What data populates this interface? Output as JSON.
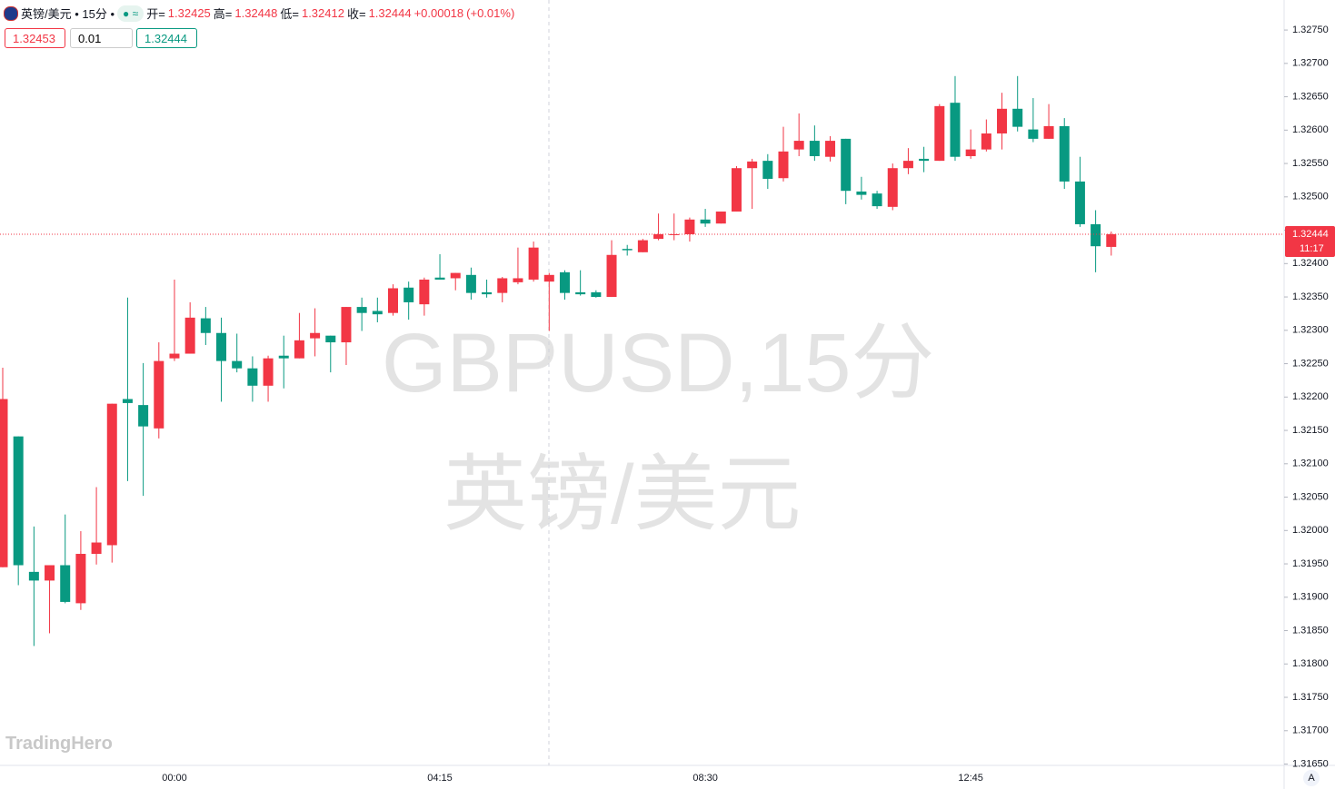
{
  "header": {
    "symbol": "英镑/美元 • 15分 •",
    "open_label": "开=",
    "high_label": "高=",
    "low_label": "低=",
    "close_label": "收=",
    "change": "+0.00018",
    "change_pct": "(+0.01%)"
  },
  "order": {
    "sell": "1.32453",
    "qty": "0.01",
    "buy": "1.32444"
  },
  "watermark": [
    "GBPUSD,15分",
    "英镑/美元"
  ],
  "logo": "TradingHero",
  "axis_mode": "A",
  "countdown": "11:17",
  "chart_data": {
    "type": "candlestick",
    "x": [
      null,
      null,
      null,
      null,
      null,
      null,
      null,
      null,
      null,
      null,
      null,
      "00:00",
      null,
      null,
      null,
      null,
      null,
      null,
      null,
      null,
      null,
      null,
      null,
      null,
      null,
      null,
      null,
      null,
      "04:15",
      null,
      null,
      null,
      null,
      null,
      null,
      null,
      null,
      null,
      null,
      null,
      null,
      null,
      null,
      null,
      null,
      "08:30",
      null,
      null,
      null,
      null,
      null,
      null,
      null,
      null,
      null,
      null,
      null,
      null,
      null,
      null,
      null,
      null,
      "12:45",
      null,
      null,
      null,
      null,
      null,
      null,
      null,
      null,
      null
    ],
    "open": [
      1.31945,
      1.32141,
      1.31938,
      1.31925,
      1.31948,
      1.31891,
      1.31965,
      1.31978,
      1.32197,
      1.32188,
      1.32153,
      1.32258,
      1.32265,
      1.32318,
      1.32296,
      1.32254,
      1.32243,
      1.32217,
      1.32262,
      1.32258,
      1.32288,
      1.32292,
      1.32282,
      1.32335,
      1.32329,
      1.32326,
      1.32364,
      1.32339,
      1.32379,
      1.32378,
      1.32383,
      1.32357,
      1.32356,
      1.32372,
      1.32376,
      1.32373,
      1.32387,
      1.32357,
      1.32357,
      1.3235,
      1.32422,
      1.32417,
      1.32437,
      1.32443,
      1.32444,
      1.32466,
      1.3246,
      1.32478,
      1.32543,
      1.32554,
      1.32528,
      1.32571,
      1.32584,
      1.3256,
      1.32587,
      1.32508,
      1.32505,
      1.32485,
      1.32543,
      1.32557,
      1.32554,
      1.32641,
      1.32561,
      1.32571,
      1.32595,
      1.32632,
      1.32601,
      1.32587,
      1.32606,
      1.32523,
      1.32459,
      1.32425
    ],
    "high": [
      1.32244,
      1.32141,
      1.32006,
      1.31948,
      1.32024,
      1.31999,
      1.32065,
      1.3219,
      1.32349,
      1.32251,
      1.32282,
      1.32376,
      1.32342,
      1.32335,
      1.32319,
      1.32295,
      1.32261,
      1.32262,
      1.32292,
      1.32326,
      1.32333,
      1.32292,
      1.32335,
      1.32349,
      1.32349,
      1.32369,
      1.32373,
      1.32379,
      1.32414,
      1.32386,
      1.32394,
      1.32376,
      1.3238,
      1.32424,
      1.32433,
      1.32386,
      1.3239,
      1.3239,
      1.3236,
      1.32435,
      1.32428,
      1.32437,
      1.32475,
      1.32475,
      1.32469,
      1.32482,
      1.32478,
      1.32546,
      1.32557,
      1.32564,
      1.32605,
      1.32625,
      1.32607,
      1.32591,
      1.32587,
      1.3253,
      1.32509,
      1.3255,
      1.32573,
      1.32575,
      1.32639,
      1.32681,
      1.32601,
      1.32616,
      1.32656,
      1.32681,
      1.32648,
      1.32639,
      1.32618,
      1.3256,
      1.3248,
      1.32448
    ],
    "low": [
      1.31945,
      1.31918,
      1.31827,
      1.31846,
      1.31891,
      1.31881,
      1.31949,
      1.31952,
      1.32074,
      1.32052,
      1.32138,
      1.32254,
      1.32265,
      1.32278,
      1.32193,
      1.32237,
      1.32193,
      1.32193,
      1.32213,
      1.32258,
      1.32261,
      1.32237,
      1.32248,
      1.32299,
      1.32312,
      1.32322,
      1.32316,
      1.32322,
      1.32376,
      1.3236,
      1.32346,
      1.32349,
      1.32342,
      1.32369,
      1.32373,
      1.32299,
      1.32346,
      1.32352,
      1.32349,
      1.3235,
      1.32412,
      1.32417,
      1.32435,
      1.32435,
      1.32433,
      1.32455,
      1.3246,
      1.32478,
      1.32482,
      1.32512,
      1.32523,
      1.32561,
      1.32554,
      1.32553,
      1.32489,
      1.32496,
      1.32482,
      1.3248,
      1.32534,
      1.32537,
      1.32554,
      1.32554,
      1.32557,
      1.32568,
      1.32571,
      1.32598,
      1.32582,
      1.32587,
      1.32512,
      1.32455,
      1.32387,
      1.32412
    ],
    "close": [
      1.32197,
      1.31948,
      1.31925,
      1.31948,
      1.31893,
      1.31965,
      1.31982,
      1.3219,
      1.32191,
      1.32156,
      1.32254,
      1.32265,
      1.32319,
      1.32296,
      1.32254,
      1.32243,
      1.32217,
      1.32258,
      1.32258,
      1.32285,
      1.32296,
      1.32282,
      1.32335,
      1.32326,
      1.32324,
      1.32363,
      1.32342,
      1.32376,
      1.32376,
      1.32386,
      1.32356,
      1.32354,
      1.32378,
      1.32378,
      1.32424,
      1.32383,
      1.32356,
      1.32354,
      1.3235,
      1.32413,
      1.3242,
      1.32435,
      1.32444,
      1.32444,
      1.32466,
      1.3246,
      1.32478,
      1.32543,
      1.32553,
      1.32527,
      1.32568,
      1.32584,
      1.32561,
      1.32584,
      1.32509,
      1.32503,
      1.32486,
      1.32543,
      1.32554,
      1.32554,
      1.32636,
      1.3256,
      1.32571,
      1.32595,
      1.32632,
      1.32605,
      1.32587,
      1.32606,
      1.32523,
      1.32459,
      1.32426,
      1.32444
    ],
    "up_color": "#f23645",
    "down_color": "#089981",
    "ylim": [
      1.31648,
      1.32795
    ],
    "yticks": [
      {
        "value": 1.3165,
        "label": "1.31650"
      },
      {
        "value": 1.317,
        "label": "1.31700"
      },
      {
        "value": 1.3175,
        "label": "1.31750"
      },
      {
        "value": 1.318,
        "label": "1.31800"
      },
      {
        "value": 1.3185,
        "label": "1.31850"
      },
      {
        "value": 1.319,
        "label": "1.31900"
      },
      {
        "value": 1.3195,
        "label": "1.31950"
      },
      {
        "value": 1.32,
        "label": "1.32000"
      },
      {
        "value": 1.3205,
        "label": "1.32050"
      },
      {
        "value": 1.321,
        "label": "1.32100"
      },
      {
        "value": 1.3215,
        "label": "1.32150"
      },
      {
        "value": 1.322,
        "label": "1.32200"
      },
      {
        "value": 1.3225,
        "label": "1.32250"
      },
      {
        "value": 1.323,
        "label": "1.32300"
      },
      {
        "value": 1.3235,
        "label": "1.32350"
      },
      {
        "value": 1.324,
        "label": "1.32400"
      },
      {
        "value": 1.3245,
        "label": "1.32450"
      },
      {
        "value": 1.325,
        "label": "1.32500"
      },
      {
        "value": 1.3255,
        "label": "1.32550"
      },
      {
        "value": 1.326,
        "label": "1.32600"
      },
      {
        "value": 1.3265,
        "label": "1.32650"
      },
      {
        "value": 1.327,
        "label": "1.32700"
      },
      {
        "value": 1.3275,
        "label": "1.32750"
      }
    ],
    "grid": false,
    "last_price_line": true
  }
}
